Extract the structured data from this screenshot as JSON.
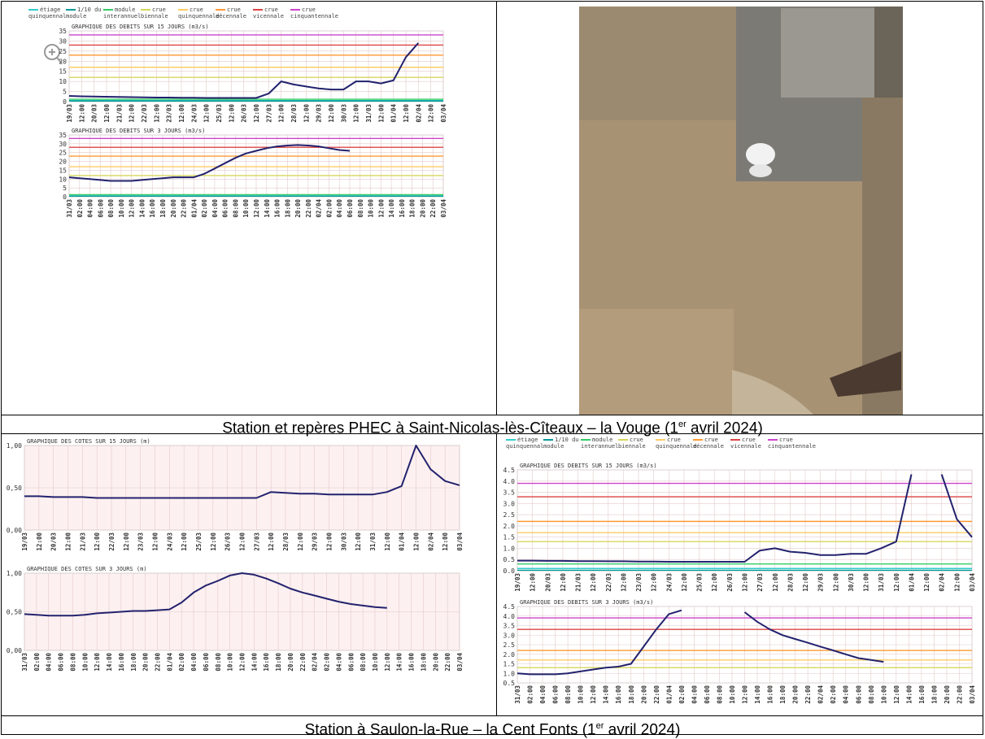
{
  "captions": [
    {
      "before": "Station et repères PHEC à Saint-Nicolas-lès-Cîteaux – la Vouge (1",
      "sup": "er",
      "after": " avril 2024)"
    },
    {
      "before": "Station à Saulon-la-Rue – la Cent Fonts (1",
      "sup": "er",
      "after": " avril 2024)"
    }
  ],
  "legends": [
    [
      {
        "label": "étiage quinquennal",
        "color": "#33cccc"
      },
      {
        "label": "1/10 du module",
        "color": "#009999"
      },
      {
        "label": "module interannuel",
        "color": "#33cc66"
      },
      {
        "label": "crue biennale",
        "color": "#d6d65c"
      },
      {
        "label": "crue quinquennale",
        "color": "#ffcc66"
      },
      {
        "label": "crue décennale",
        "color": "#ff9933"
      },
      {
        "label": "crue vicennale",
        "color": "#dd4444"
      },
      {
        "label": "crue cinquantennale",
        "color": "#cc44cc"
      }
    ],
    [
      {
        "label": "étiage quinquennal",
        "color": "#33cccc"
      },
      {
        "label": "1/10 du module",
        "color": "#009999"
      },
      {
        "label": "module interannuel",
        "color": "#33cc66"
      },
      {
        "label": "crue biennale",
        "color": "#d6d65c"
      },
      {
        "label": "crue quinquennale",
        "color": "#ffcc66"
      },
      {
        "label": "crue décennale",
        "color": "#ff9933"
      },
      {
        "label": "crue vicennale",
        "color": "#dd4444"
      },
      {
        "label": "crue cinquantennale",
        "color": "#cc44cc"
      }
    ]
  ],
  "chart_data": [
    {
      "type": "line",
      "title": "GRAPHIQUE DES DEBITS SUR 15 JOURS (m3/s)",
      "color": "#22226e",
      "background": "#ffffff",
      "categories": [
        "19/03",
        "12:00",
        "20/03",
        "12:00",
        "21/03",
        "12:00",
        "22/03",
        "12:00",
        "23/03",
        "12:00",
        "24/03",
        "12:00",
        "25/03",
        "12:00",
        "26/03",
        "12:00",
        "27/03",
        "12:00",
        "28/03",
        "12:00",
        "29/03",
        "12:00",
        "30/03",
        "12:00",
        "31/03",
        "12:00",
        "01/04",
        "12:00",
        "02/04",
        "12:00",
        "03/04"
      ],
      "values": [
        2.8,
        2.6,
        2.5,
        2.4,
        2.3,
        2.2,
        2.1,
        2.0,
        2.0,
        1.9,
        1.9,
        1.8,
        1.8,
        1.8,
        1.8,
        1.8,
        4.0,
        10.0,
        8.5,
        7.5,
        6.5,
        6.0,
        6.0,
        10.0,
        10.0,
        9.0,
        10.5,
        22.0,
        29.0,
        null,
        null
      ],
      "ylim": [
        0,
        35
      ],
      "yticks": [
        0,
        5,
        10,
        15,
        20,
        25,
        30,
        35
      ],
      "grid": true,
      "thresholds": [
        {
          "value": 0.5,
          "color": "#33cccc"
        },
        {
          "value": 0.3,
          "color": "#009999"
        },
        {
          "value": 1.2,
          "color": "#33cc66"
        },
        {
          "value": 12,
          "color": "#d6d65c"
        },
        {
          "value": 17,
          "color": "#ffcc66"
        },
        {
          "value": 23,
          "color": "#ff9933"
        },
        {
          "value": 28,
          "color": "#dd4444"
        },
        {
          "value": 33,
          "color": "#cc44cc"
        }
      ]
    },
    {
      "type": "line",
      "title": "GRAPHIQUE DES DEBITS SUR 3 JOURS (m3/s)",
      "color": "#22226e",
      "background": "#ffffff",
      "categories": [
        "31/03",
        "02:00",
        "04:00",
        "06:00",
        "08:00",
        "10:00",
        "12:00",
        "14:00",
        "16:00",
        "18:00",
        "20:00",
        "22:00",
        "01/04",
        "02:00",
        "04:00",
        "06:00",
        "08:00",
        "10:00",
        "12:00",
        "14:00",
        "16:00",
        "18:00",
        "20:00",
        "22:00",
        "02/04",
        "02:00",
        "04:00",
        "06:00",
        "08:00",
        "10:00",
        "12:00",
        "14:00",
        "16:00",
        "18:00",
        "20:00",
        "22:00",
        "03/04"
      ],
      "values": [
        11,
        10.5,
        10,
        9.5,
        9,
        9,
        9,
        9.5,
        10,
        10.5,
        11,
        11,
        11,
        13,
        16,
        19,
        22,
        24.5,
        26,
        27.5,
        28.5,
        29,
        29.3,
        29,
        28.5,
        27.5,
        26.5,
        26,
        null,
        null,
        null,
        null,
        null,
        null,
        null,
        null,
        null
      ],
      "ylim": [
        0,
        35
      ],
      "yticks": [
        0,
        5,
        10,
        15,
        20,
        25,
        30,
        35
      ],
      "grid": true,
      "thresholds": [
        {
          "value": 0.5,
          "color": "#33cccc"
        },
        {
          "value": 0.3,
          "color": "#009999"
        },
        {
          "value": 1.2,
          "color": "#33cc66"
        },
        {
          "value": 12,
          "color": "#d6d65c"
        },
        {
          "value": 17,
          "color": "#ffcc66"
        },
        {
          "value": 23,
          "color": "#ff9933"
        },
        {
          "value": 28,
          "color": "#dd4444"
        },
        {
          "value": 33,
          "color": "#cc44cc"
        }
      ]
    },
    {
      "type": "line",
      "title": "GRAPHIQUE DES COTES SUR 15 JOURS (m)",
      "color": "#22226e",
      "background": "#fdf0f0",
      "categories": [
        "19/03",
        "12:00",
        "20/03",
        "12:00",
        "21/03",
        "12:00",
        "22/03",
        "12:00",
        "23/03",
        "12:00",
        "24/03",
        "12:00",
        "25/03",
        "12:00",
        "26/03",
        "12:00",
        "27/03",
        "12:00",
        "28/03",
        "12:00",
        "29/03",
        "12:00",
        "30/03",
        "12:00",
        "31/03",
        "12:00",
        "01/04",
        "12:00",
        "02/04",
        "12:00",
        "03/04"
      ],
      "values": [
        0.4,
        0.4,
        0.39,
        0.39,
        0.39,
        0.38,
        0.38,
        0.38,
        0.38,
        0.38,
        0.38,
        0.38,
        0.38,
        0.38,
        0.38,
        0.38,
        0.38,
        0.45,
        0.44,
        0.43,
        0.43,
        0.42,
        0.42,
        0.42,
        0.42,
        0.45,
        0.52,
        1.0,
        0.72,
        0.58,
        0.53
      ],
      "ylim": [
        0,
        1
      ],
      "yticks": [
        {
          "value": 0,
          "label": "0,00"
        },
        {
          "value": 0.5,
          "label": "0,50"
        },
        {
          "value": 1,
          "label": "1,00"
        }
      ],
      "grid": true,
      "thresholds": []
    },
    {
      "type": "line",
      "title": "GRAPHIQUE DES COTES SUR 3 JOURS (m)",
      "color": "#22226e",
      "background": "#fdf0f0",
      "categories": [
        "31/03",
        "02:00",
        "04:00",
        "06:00",
        "08:00",
        "10:00",
        "12:00",
        "14:00",
        "16:00",
        "18:00",
        "20:00",
        "22:00",
        "01/04",
        "02:00",
        "04:00",
        "06:00",
        "08:00",
        "10:00",
        "12:00",
        "14:00",
        "16:00",
        "18:00",
        "20:00",
        "22:00",
        "02/04",
        "02:00",
        "04:00",
        "06:00",
        "08:00",
        "10:00",
        "12:00",
        "14:00",
        "16:00",
        "18:00",
        "20:00",
        "22:00",
        "03/04"
      ],
      "values": [
        0.47,
        0.46,
        0.45,
        0.45,
        0.45,
        0.46,
        0.48,
        0.49,
        0.5,
        0.51,
        0.51,
        0.52,
        0.53,
        0.62,
        0.75,
        0.84,
        0.9,
        0.97,
        1.0,
        0.98,
        0.93,
        0.87,
        0.8,
        0.75,
        0.71,
        0.67,
        0.63,
        0.6,
        0.58,
        0.56,
        0.55,
        null,
        null,
        null,
        null,
        null,
        null
      ],
      "ylim": [
        0,
        1
      ],
      "yticks": [
        {
          "value": 0,
          "label": "0,00"
        },
        {
          "value": 0.5,
          "label": "0,50"
        },
        {
          "value": 1,
          "label": "1,00"
        }
      ],
      "grid": true,
      "thresholds": []
    },
    {
      "type": "line",
      "title": "GRAPHIQUE DES DEBITS SUR 15 JOURS (m3/s)",
      "color": "#22226e",
      "background": "#ffffff",
      "categories": [
        "19/03",
        "12:00",
        "20/03",
        "12:00",
        "21/03",
        "12:00",
        "22/03",
        "12:00",
        "23/03",
        "12:00",
        "24/03",
        "12:00",
        "25/03",
        "12:00",
        "26/03",
        "12:00",
        "27/03",
        "12:00",
        "28/03",
        "12:00",
        "29/03",
        "12:00",
        "30/03",
        "12:00",
        "31/03",
        "12:00",
        "01/04",
        "12:00",
        "02/04",
        "12:00",
        "03/04"
      ],
      "values": [
        0.45,
        0.45,
        0.44,
        0.44,
        0.43,
        0.43,
        0.42,
        0.42,
        0.41,
        0.41,
        0.4,
        0.4,
        0.4,
        0.4,
        0.4,
        0.4,
        0.9,
        1.0,
        0.85,
        0.8,
        0.7,
        0.7,
        0.75,
        0.75,
        1.0,
        1.3,
        4.3,
        null,
        4.3,
        2.3,
        1.5
      ],
      "ylim": [
        0,
        4.5
      ],
      "yticks": [
        {
          "value": 0,
          "label": "0.0"
        },
        0.5,
        {
          "value": 1,
          "label": "1.0"
        },
        1.5,
        {
          "value": 2,
          "label": "2.0"
        },
        2.5,
        {
          "value": 3,
          "label": "3.0"
        },
        3.5,
        {
          "value": 4,
          "label": "4.0"
        },
        4.5
      ],
      "grid": true,
      "thresholds": [
        {
          "value": 0.1,
          "color": "#33cccc"
        },
        {
          "value": 0.02,
          "color": "#009999"
        },
        {
          "value": 0.3,
          "color": "#33cc66"
        },
        {
          "value": 1.3,
          "color": "#d6d65c"
        },
        {
          "value": 1.7,
          "color": "#ffcc66"
        },
        {
          "value": 2.2,
          "color": "#ff9933"
        },
        {
          "value": 3.3,
          "color": "#dd4444"
        },
        {
          "value": 3.9,
          "color": "#cc44cc"
        }
      ]
    },
    {
      "type": "line",
      "title": "GRAPHIQUE DES DEBITS SUR 3 JOURS (m3/s)",
      "color": "#22226e",
      "background": "#ffffff",
      "categories": [
        "31/03",
        "02:00",
        "04:00",
        "06:00",
        "08:00",
        "10:00",
        "12:00",
        "14:00",
        "16:00",
        "18:00",
        "20:00",
        "22:00",
        "01/04",
        "02:00",
        "04:00",
        "06:00",
        "08:00",
        "10:00",
        "12:00",
        "14:00",
        "16:00",
        "18:00",
        "20:00",
        "22:00",
        "02/04",
        "02:00",
        "04:00",
        "06:00",
        "08:00",
        "10:00",
        "12:00",
        "14:00",
        "16:00",
        "18:00",
        "20:00",
        "22:00",
        "03/04"
      ],
      "values": [
        1.0,
        0.95,
        0.95,
        0.95,
        1.0,
        1.1,
        1.2,
        1.3,
        1.35,
        1.5,
        2.4,
        3.3,
        4.1,
        4.3,
        null,
        null,
        null,
        null,
        4.2,
        3.7,
        3.3,
        3.0,
        2.8,
        2.6,
        2.4,
        2.2,
        2.0,
        1.8,
        1.7,
        1.6,
        null,
        null,
        null,
        null,
        null,
        null,
        null
      ],
      "ylim": [
        0.5,
        4.5
      ],
      "yticks": [
        0.5,
        {
          "value": 1,
          "label": "1.0"
        },
        1.5,
        {
          "value": 2,
          "label": "2.0"
        },
        2.5,
        {
          "value": 3,
          "label": "3.0"
        },
        3.5,
        {
          "value": 4,
          "label": "4.0"
        },
        4.5
      ],
      "grid": true,
      "thresholds": [
        {
          "value": 1.3,
          "color": "#d6d65c"
        },
        {
          "value": 1.7,
          "color": "#ffcc66"
        },
        {
          "value": 2.2,
          "color": "#ff9933"
        },
        {
          "value": 3.3,
          "color": "#dd4444"
        },
        {
          "value": 3.9,
          "color": "#cc44cc"
        }
      ]
    }
  ]
}
